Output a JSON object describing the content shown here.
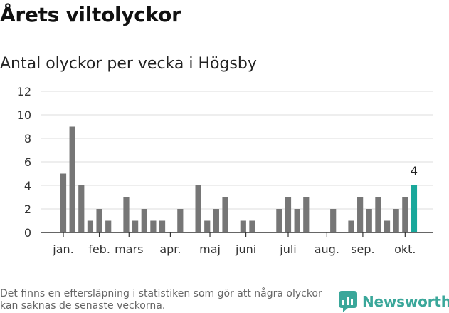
{
  "title": "Årets viltolyckor",
  "subtitle": "Antal olyckor per vecka i Högsby",
  "footnote": "Det finns en eftersläpning i statistiken som gör att några olyckor kan saknas de senaste veckorna.",
  "brand": {
    "name": "Newsworthy",
    "color": "#3aa79a",
    "logo_icon": "newsworthy-logo-icon"
  },
  "colors": {
    "bar": "#767676",
    "highlight": "#19a89b",
    "grid": "#dddddd",
    "axis": "#333333"
  },
  "chart_data": {
    "type": "bar",
    "x": [
      1,
      2,
      3,
      4,
      5,
      6,
      7,
      8,
      9,
      10,
      11,
      12,
      13,
      14,
      15,
      16,
      17,
      18,
      19,
      20,
      21,
      22,
      23,
      24,
      25,
      26,
      27,
      28,
      29,
      30,
      31,
      32,
      33,
      34,
      35,
      36,
      37,
      38,
      39,
      40
    ],
    "values": [
      5,
      9,
      4,
      1,
      2,
      1,
      0,
      3,
      1,
      2,
      1,
      1,
      0,
      2,
      0,
      4,
      1,
      2,
      3,
      0,
      1,
      1,
      0,
      0,
      2,
      3,
      2,
      3,
      0,
      0,
      2,
      0,
      1,
      3,
      2,
      3,
      1,
      2,
      3,
      4
    ],
    "highlight_index": 39,
    "highlight_label": "4",
    "ylim": [
      0,
      12
    ],
    "yticks": [
      0,
      2,
      4,
      6,
      8,
      10,
      12
    ],
    "month_labels": [
      "jan.",
      "feb.",
      "mars",
      "apr.",
      "maj",
      "juni",
      "juli",
      "aug.",
      "sep.",
      "okt."
    ],
    "month_label_weeks": [
      1,
      5,
      8.3,
      12.9,
      17.3,
      21.3,
      26,
      30.3,
      34.3,
      39
    ],
    "grid": true
  }
}
